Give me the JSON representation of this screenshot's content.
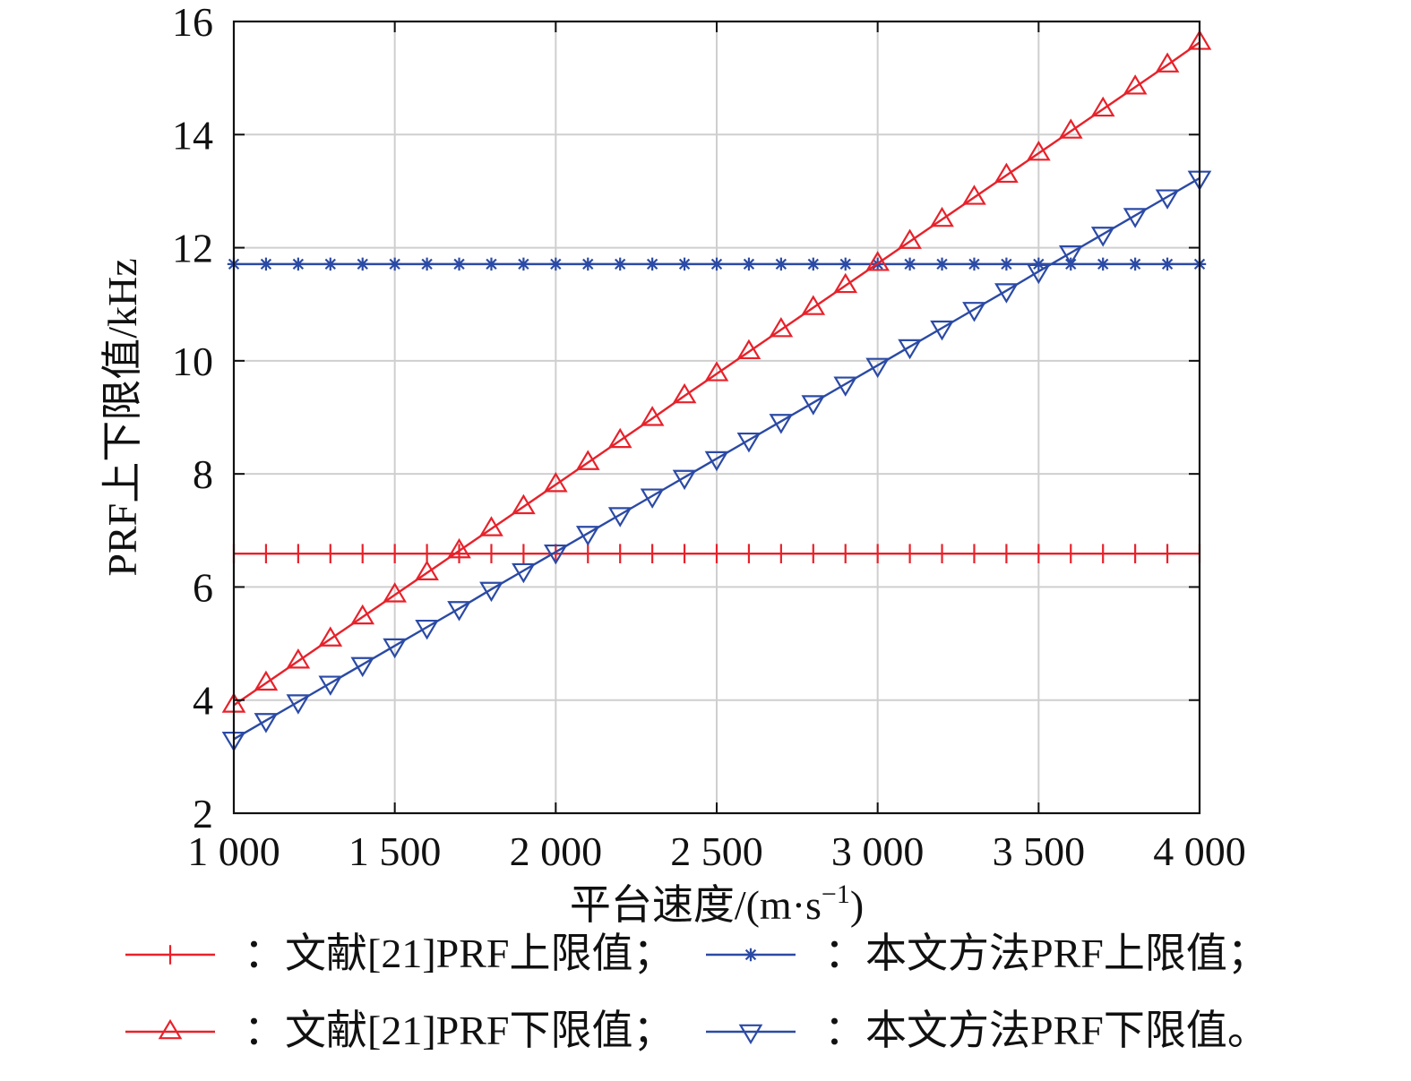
{
  "chart_data": {
    "type": "line",
    "xlabel": "平台速度/(m·s",
    "xlabel_sup": "−1",
    "xlabel_close": ")",
    "ylabel": "PRF上下限值/kHz",
    "xlim": [
      1000,
      4000
    ],
    "ylim": [
      2,
      16
    ],
    "xticks": [
      1000,
      1500,
      2000,
      2500,
      3000,
      3500,
      4000
    ],
    "xtick_labels": [
      "1 000",
      "1 500",
      "2 000",
      "2 500",
      "3 000",
      "3 500",
      "4 000"
    ],
    "yticks": [
      2,
      4,
      6,
      8,
      10,
      12,
      14,
      16
    ],
    "ytick_labels": [
      "2",
      "4",
      "6",
      "8",
      "10",
      "12",
      "14",
      "16"
    ],
    "grid": true,
    "legend_position": "bottom",
    "x": [
      1000,
      1100,
      1200,
      1300,
      1400,
      1500,
      1600,
      1700,
      1800,
      1900,
      2000,
      2100,
      2200,
      2300,
      2400,
      2500,
      2600,
      2700,
      2800,
      2900,
      3000,
      3100,
      3200,
      3300,
      3400,
      3500,
      3600,
      3700,
      3800,
      3900,
      4000
    ],
    "series": [
      {
        "name": "：文献[21]PRF上限值；",
        "color": "#e8212a",
        "marker": "plus",
        "values": [
          6.59,
          6.59,
          6.59,
          6.59,
          6.59,
          6.59,
          6.59,
          6.59,
          6.59,
          6.59,
          6.59,
          6.59,
          6.59,
          6.59,
          6.59,
          6.59,
          6.59,
          6.59,
          6.59,
          6.59,
          6.59,
          6.59,
          6.59,
          6.59,
          6.59,
          6.59,
          6.59,
          6.59,
          6.59,
          6.59,
          6.59
        ]
      },
      {
        "name": "：本文方法PRF上限值；",
        "color": "#2b4aa5",
        "marker": "star",
        "values": [
          11.71,
          11.71,
          11.71,
          11.71,
          11.71,
          11.71,
          11.71,
          11.71,
          11.71,
          11.71,
          11.71,
          11.71,
          11.71,
          11.71,
          11.71,
          11.71,
          11.71,
          11.71,
          11.71,
          11.71,
          11.71,
          11.71,
          11.71,
          11.71,
          11.71,
          11.71,
          11.71,
          11.71,
          11.71,
          11.71,
          11.71
        ]
      },
      {
        "name": "：文献[21]PRF下限值；",
        "color": "#e8212a",
        "marker": "triangle-up",
        "values": [
          3.91,
          4.3,
          4.69,
          5.08,
          5.47,
          5.86,
          6.25,
          6.64,
          7.03,
          7.42,
          7.81,
          8.2,
          8.59,
          8.98,
          9.38,
          9.77,
          10.16,
          10.55,
          10.94,
          11.33,
          11.72,
          12.11,
          12.5,
          12.89,
          13.28,
          13.67,
          14.06,
          14.45,
          14.84,
          15.23,
          15.63
        ]
      },
      {
        "name": "：本文方法PRF下限值。",
        "color": "#2b4aa5",
        "marker": "triangle-down",
        "values": [
          3.31,
          3.64,
          3.97,
          4.3,
          4.63,
          4.96,
          5.29,
          5.62,
          5.96,
          6.29,
          6.62,
          6.95,
          7.28,
          7.61,
          7.94,
          8.27,
          8.6,
          8.93,
          9.26,
          9.59,
          9.92,
          10.25,
          10.58,
          10.91,
          11.24,
          11.58,
          11.91,
          12.24,
          12.57,
          12.9,
          13.23
        ]
      }
    ]
  }
}
